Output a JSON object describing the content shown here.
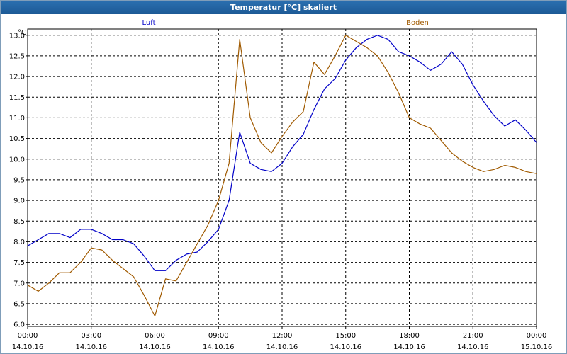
{
  "window": {
    "title": "Temperatur [°C] skaliert"
  },
  "colors": {
    "luft": "#0000c8",
    "boden": "#a05a00",
    "grid": "#000000",
    "titlebar": "#1d5a96"
  },
  "chart_data": {
    "type": "line",
    "title": "Temperatur [°C] skaliert",
    "ylabel": "°C",
    "xlabel": "",
    "ylim": [
      5.95,
      13.15
    ],
    "xlim": [
      0,
      24
    ],
    "grid": true,
    "legend": "top",
    "y_ticks": [
      "6.0",
      "6.5",
      "7.0",
      "7.5",
      "8.0",
      "8.5",
      "9.0",
      "9.5",
      "10.0",
      "10.5",
      "11.0",
      "11.5",
      "12.0",
      "12.5",
      "13.0"
    ],
    "x_ticks": [
      {
        "time": "00:00",
        "date": "14.10.16"
      },
      {
        "time": "03:00",
        "date": "14.10.16"
      },
      {
        "time": "06:00",
        "date": "14.10.16"
      },
      {
        "time": "09:00",
        "date": "14.10.16"
      },
      {
        "time": "12:00",
        "date": "14.10.16"
      },
      {
        "time": "15:00",
        "date": "14.10.16"
      },
      {
        "time": "18:00",
        "date": "14.10.16"
      },
      {
        "time": "21:00",
        "date": "14.10.16"
      },
      {
        "time": "00:00",
        "date": "15.10.16"
      }
    ],
    "series": [
      {
        "name": "Luft",
        "color": "#0000c8",
        "x": [
          0,
          0.5,
          1,
          1.5,
          2,
          2.5,
          3,
          3.5,
          4,
          4.5,
          5,
          5.5,
          6,
          6.5,
          7,
          7.5,
          8,
          8.5,
          9,
          9.5,
          10,
          10.5,
          11,
          11.5,
          12,
          12.5,
          13,
          13.5,
          14,
          14.5,
          15,
          15.5,
          16,
          16.5,
          17,
          17.5,
          18,
          18.5,
          19,
          19.5,
          20,
          20.5,
          21,
          21.5,
          22,
          22.5,
          23,
          23.5,
          24
        ],
        "y": [
          7.9,
          8.05,
          8.2,
          8.2,
          8.1,
          8.3,
          8.3,
          8.2,
          8.05,
          8.05,
          7.95,
          7.65,
          7.3,
          7.3,
          7.55,
          7.7,
          7.75,
          8.0,
          8.3,
          9.0,
          10.65,
          9.9,
          9.75,
          9.7,
          9.9,
          10.3,
          10.6,
          11.2,
          11.7,
          11.95,
          12.4,
          12.7,
          12.9,
          13.0,
          12.9,
          12.6,
          12.5,
          12.35,
          12.15,
          12.3,
          12.6,
          12.3,
          11.8,
          11.4,
          11.05,
          10.8,
          10.95,
          10.7,
          10.4
        ]
      },
      {
        "name": "Boden",
        "color": "#a05a00",
        "x": [
          0,
          0.5,
          1,
          1.5,
          2,
          2.5,
          3,
          3.5,
          4,
          4.5,
          5,
          5.5,
          6,
          6.5,
          7,
          7.5,
          8,
          8.5,
          9,
          9.5,
          10,
          10.5,
          11,
          11.5,
          12,
          12.5,
          13,
          13.5,
          14,
          14.5,
          15,
          15.5,
          16,
          16.5,
          17,
          17.5,
          18,
          18.5,
          19,
          19.5,
          20,
          20.5,
          21,
          21.5,
          22,
          22.5,
          23,
          23.5,
          24
        ],
        "y": [
          6.95,
          6.8,
          7.0,
          7.25,
          7.25,
          7.5,
          7.85,
          7.8,
          7.55,
          7.35,
          7.15,
          6.7,
          6.2,
          7.1,
          7.05,
          7.5,
          7.95,
          8.4,
          9.0,
          9.9,
          12.9,
          11.0,
          10.4,
          10.15,
          10.55,
          10.9,
          11.15,
          12.35,
          12.05,
          12.5,
          13.0,
          12.85,
          12.7,
          12.5,
          12.1,
          11.6,
          11.0,
          10.85,
          10.75,
          10.45,
          10.15,
          9.95,
          9.8,
          9.7,
          9.75,
          9.85,
          9.8,
          9.7,
          9.65
        ]
      }
    ]
  }
}
